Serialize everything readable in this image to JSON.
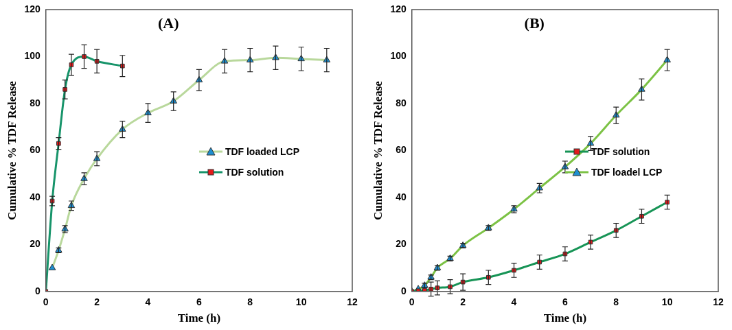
{
  "chart_data": [
    {
      "type": "line",
      "annotations": [
        "(A)"
      ],
      "xlabel": "Time (h)",
      "ylabel": "Cumulative % TDF Release",
      "xlim": [
        0,
        12
      ],
      "xticks": [
        0,
        2,
        4,
        6,
        8,
        10,
        12
      ],
      "ylim": [
        0,
        120
      ],
      "yticks": [
        0,
        20,
        40,
        60,
        80,
        100,
        120
      ],
      "grid": false,
      "legend": "right",
      "line_style": "solid",
      "series": [
        {
          "name": "TDF loaded LCP",
          "color": "#b9d89c",
          "marker": "triangle",
          "x": [
            0.25,
            0.5,
            0.75,
            1,
            1.5,
            2,
            3,
            4,
            5,
            6,
            7,
            8,
            9,
            10,
            11
          ],
          "values": [
            10,
            17.5,
            26.5,
            36.5,
            48,
            56.5,
            69,
            76,
            81,
            90,
            98,
            98.5,
            99.5,
            99,
            98.5
          ],
          "errors": [
            null,
            1,
            1.5,
            2,
            2.5,
            3,
            3.5,
            4,
            4,
            4.5,
            5,
            5,
            5,
            5,
            5
          ]
        },
        {
          "name": "TDF solution",
          "color": "#17946a",
          "marker": "square",
          "x": [
            0,
            0.25,
            0.5,
            0.75,
            1,
            1.5,
            2,
            3
          ],
          "values": [
            0,
            38.5,
            63,
            86,
            96.5,
            100,
            98,
            96
          ],
          "errors": [
            null,
            2,
            2.5,
            4,
            4.5,
            5,
            5,
            4.5
          ]
        }
      ]
    },
    {
      "type": "line",
      "annotations": [
        "(B)"
      ],
      "xlabel": "Time (h)",
      "ylabel": "Cumulative % TDF Release",
      "xlim": [
        0,
        12
      ],
      "xticks": [
        0,
        2,
        4,
        6,
        8,
        10,
        12
      ],
      "ylim": [
        0,
        120
      ],
      "yticks": [
        0,
        20,
        40,
        60,
        80,
        100,
        120
      ],
      "grid": false,
      "legend": "right",
      "line_style": "solid",
      "series": [
        {
          "name": "TDF solution",
          "color": "#179456",
          "marker": "square",
          "x": [
            0,
            0.25,
            0.5,
            0.75,
            1,
            1.5,
            2,
            3,
            4,
            5,
            6,
            7,
            8,
            9,
            10
          ],
          "values": [
            0,
            0.3,
            0.5,
            1,
            1.5,
            2,
            4,
            6,
            9,
            12.5,
            16,
            21,
            26,
            32,
            38
          ],
          "errors": [
            null,
            null,
            null,
            3,
            3,
            3,
            3.5,
            3,
            3,
            3,
            3,
            3,
            3,
            3,
            3
          ]
        },
        {
          "name": "TDF loadel LCP",
          "color": "#7cc245",
          "marker": "triangle",
          "x": [
            0,
            0.25,
            0.5,
            0.75,
            1,
            1.5,
            2,
            3,
            4,
            5,
            6,
            7,
            8,
            9,
            10
          ],
          "values": [
            0,
            1,
            2.5,
            6,
            10,
            14,
            19.5,
            27,
            35,
            44,
            53,
            63,
            75,
            86,
            98.5
          ],
          "errors": [
            null,
            null,
            1,
            1,
            1,
            1,
            1,
            1,
            1.5,
            2,
            2.5,
            3,
            3.5,
            4.5,
            4.5
          ]
        }
      ]
    }
  ]
}
